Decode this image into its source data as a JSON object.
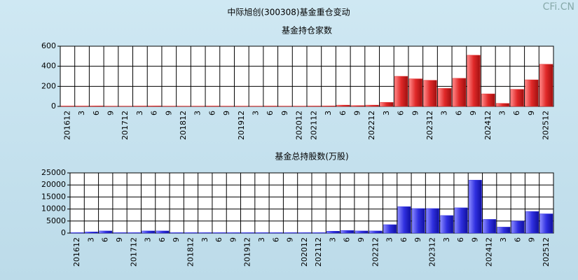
{
  "page": {
    "title": "中际旭创(300308)基金重仓变动",
    "watermark": "CFi.CN"
  },
  "chart_data": [
    {
      "type": "bar",
      "title": "基金持仓家数",
      "categories": [
        "201612",
        "3",
        "6",
        "9",
        "201712",
        "3",
        "6",
        "9",
        "201812",
        "3",
        "6",
        "9",
        "201912",
        "3",
        "6",
        "9",
        "202012",
        "202112",
        "3",
        "6",
        "9",
        "202212",
        "3",
        "6",
        "9",
        "202312",
        "3",
        "6",
        "9",
        "202412",
        "3",
        "6",
        "9",
        "202512"
      ],
      "values": [
        4,
        4,
        5,
        3,
        3,
        4,
        5,
        3,
        3,
        3,
        4,
        3,
        3,
        3,
        4,
        3,
        3,
        4,
        5,
        13,
        8,
        13,
        40,
        300,
        275,
        260,
        180,
        280,
        510,
        125,
        30,
        170,
        265,
        420
      ],
      "color": "#e02828",
      "ylim": [
        0,
        600
      ],
      "yticks": [
        0,
        200,
        400,
        600
      ],
      "grid": true
    },
    {
      "type": "bar",
      "title": "基金总持股数(万股)",
      "categories": [
        "201612",
        "3",
        "6",
        "9",
        "201712",
        "3",
        "6",
        "9",
        "201812",
        "3",
        "6",
        "9",
        "201912",
        "3",
        "6",
        "9",
        "202012",
        "202112",
        "3",
        "6",
        "9",
        "202212",
        "3",
        "6",
        "9",
        "202312",
        "3",
        "6",
        "9",
        "202412",
        "3",
        "6",
        "9",
        "202512"
      ],
      "values": [
        200,
        500,
        900,
        200,
        200,
        900,
        900,
        200,
        200,
        200,
        200,
        200,
        200,
        200,
        200,
        200,
        200,
        200,
        800,
        1100,
        900,
        900,
        3500,
        11000,
        10200,
        10200,
        7300,
        10500,
        22000,
        5700,
        2500,
        5000,
        9000,
        8000
      ],
      "color": "#3030e0",
      "ylim": [
        0,
        25000
      ],
      "yticks": [
        0,
        5000,
        10000,
        15000,
        20000,
        25000
      ],
      "grid": true
    }
  ]
}
